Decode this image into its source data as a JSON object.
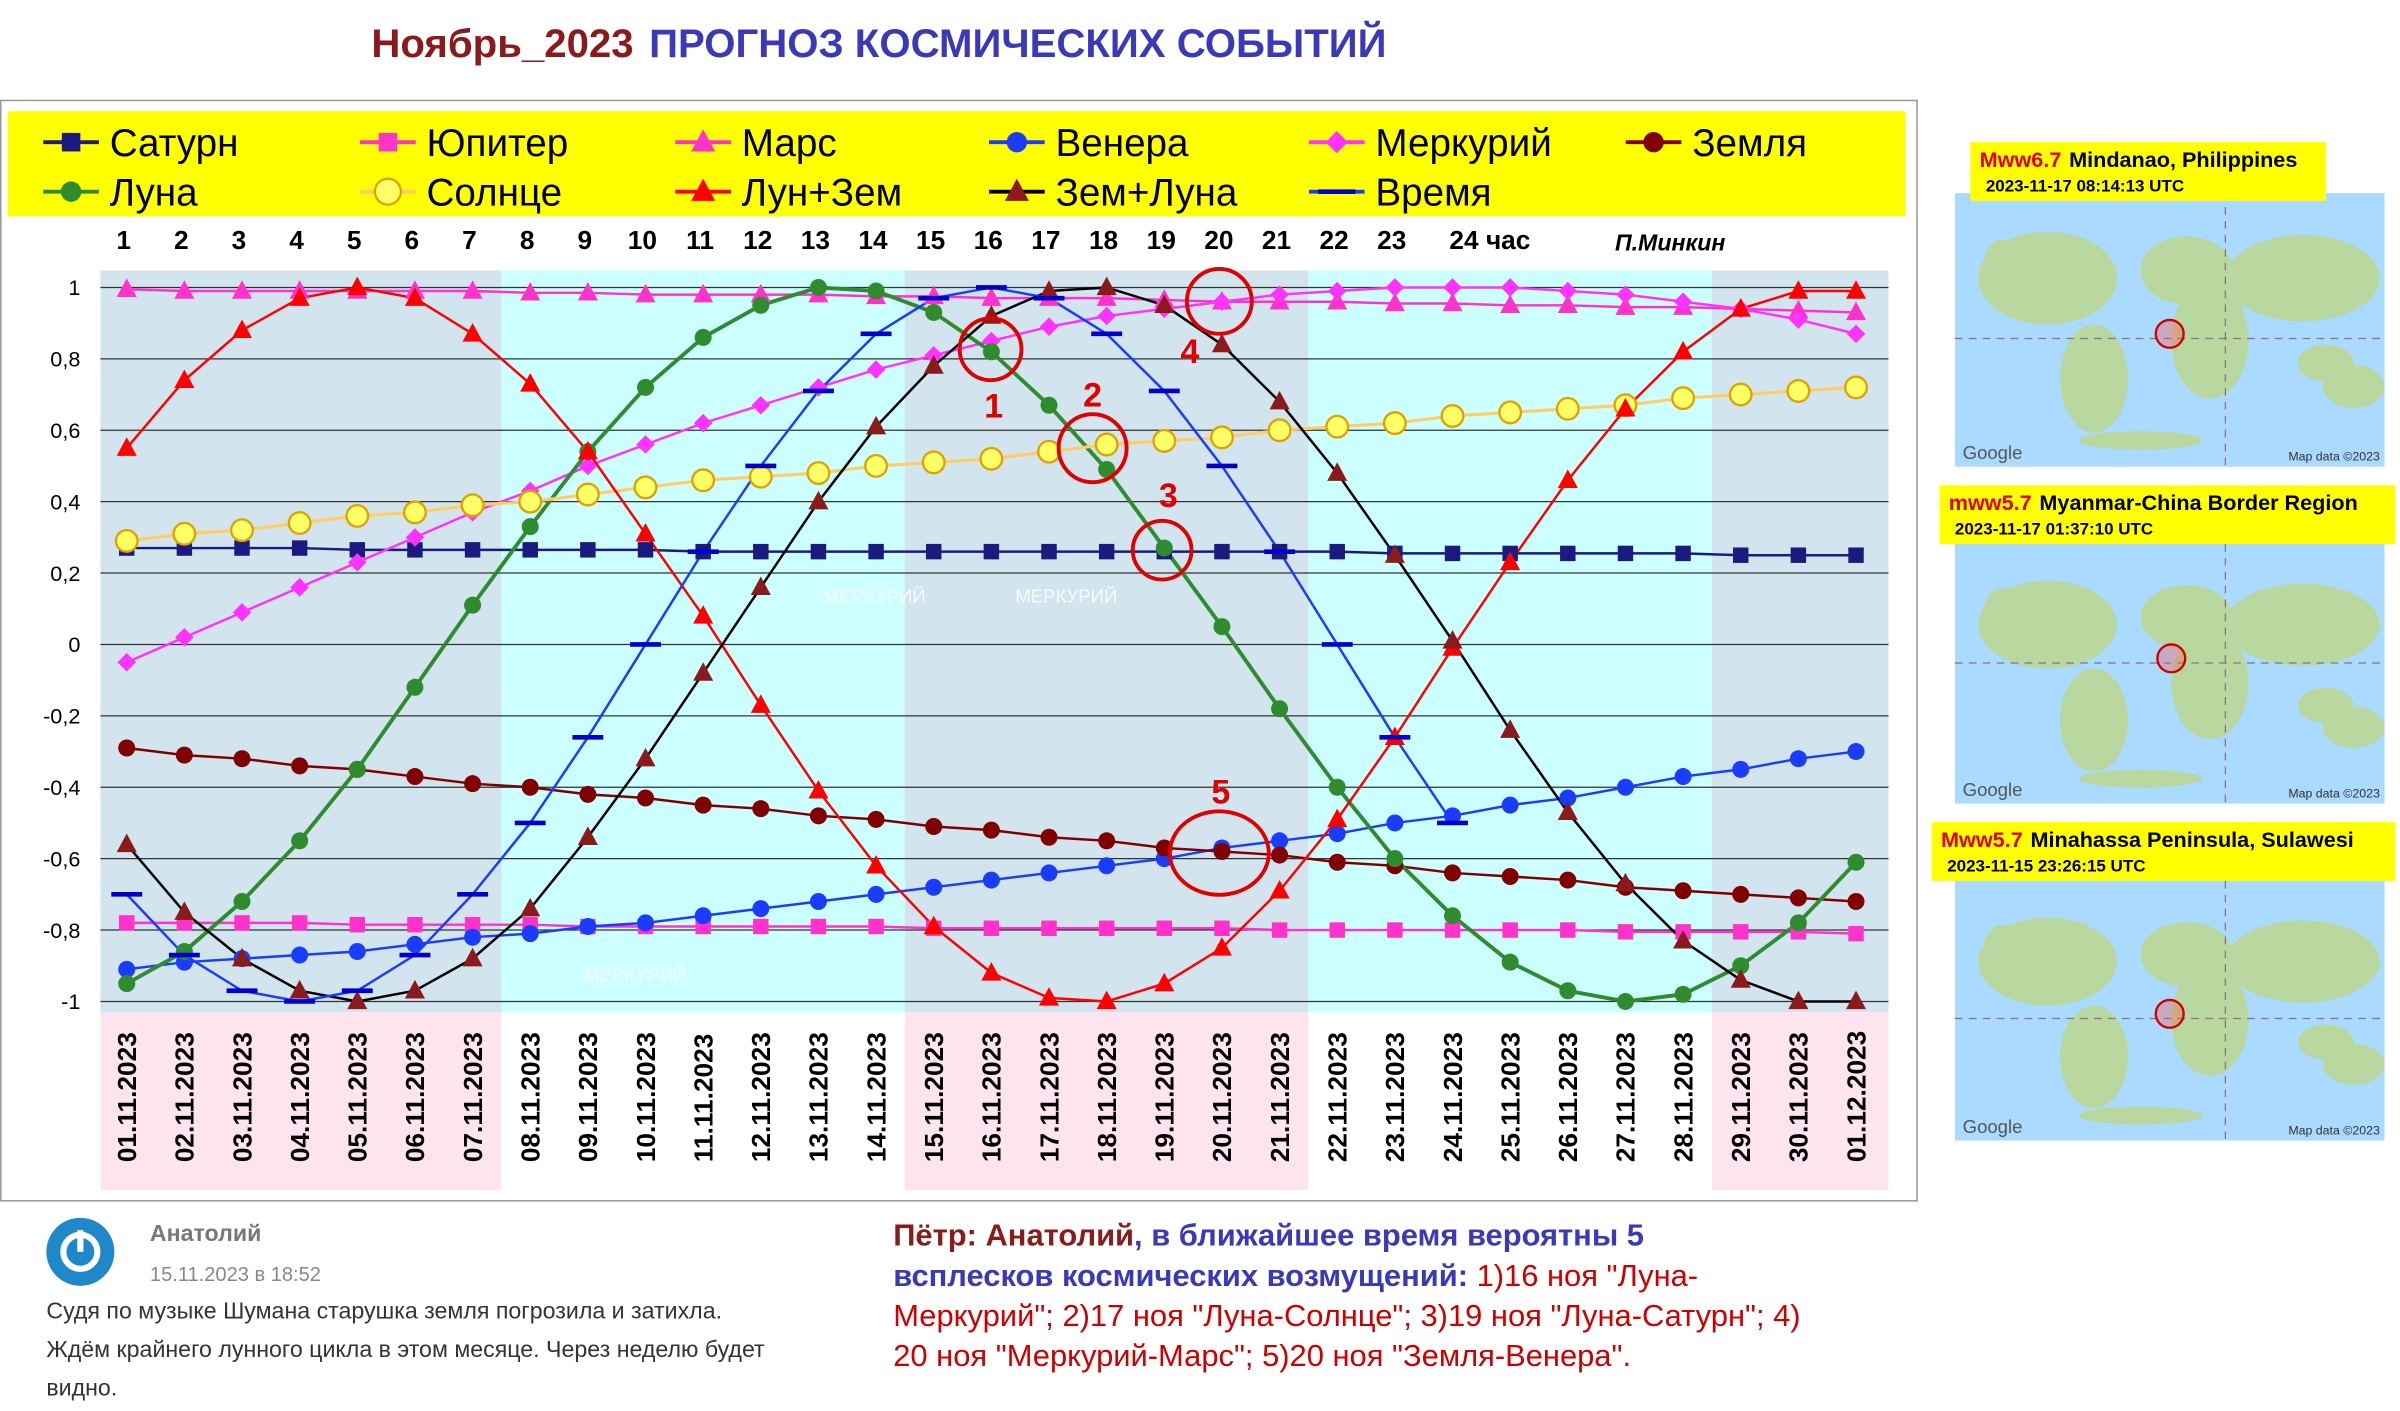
{
  "chart_data": {
    "type": "line",
    "title_part1": "Ноябрь_2023",
    "title_part2": "ПРОГНОЗ КОСМИЧЕСКИХ СОБЫТИЙ",
    "signature": "П.Минкин",
    "hour_labels": [
      "1",
      "2",
      "3",
      "4",
      "5",
      "6",
      "7",
      "8",
      "9",
      "10",
      "11",
      "12",
      "13",
      "14",
      "15",
      "16",
      "17",
      "18",
      "19",
      "20",
      "21",
      "22",
      "23",
      "24 час"
    ],
    "categories": [
      "01.11.2023",
      "02.11.2023",
      "03.11.2023",
      "04.11.2023",
      "05.11.2023",
      "06.11.2023",
      "07.11.2023",
      "08.11.2023",
      "09.11.2023",
      "10.11.2023",
      "11.11.2023",
      "12.11.2023",
      "13.11.2023",
      "14.11.2023",
      "15.11.2023",
      "16.11.2023",
      "17.11.2023",
      "18.11.2023",
      "19.11.2023",
      "20.11.2023",
      "21.11.2023",
      "22.11.2023",
      "23.11.2023",
      "24.11.2023",
      "25.11.2023",
      "26.11.2023",
      "27.11.2023",
      "28.11.2023",
      "29.11.2023",
      "30.11.2023",
      "01.12.2023"
    ],
    "ylim": [
      -1,
      1
    ],
    "yticks": [
      -1,
      {
        "value": -0.8,
        "label": "-0,8"
      },
      {
        "value": -0.6,
        "label": "-0,6"
      },
      {
        "value": -0.4,
        "label": "-0,4"
      },
      {
        "value": -0.2,
        "label": "-0,2"
      },
      0,
      {
        "value": 0.2,
        "label": "0,2"
      },
      {
        "value": 0.4,
        "label": "0,4"
      },
      {
        "value": 0.6,
        "label": "0,6"
      },
      {
        "value": 0.8,
        "label": "0,8"
      },
      1
    ],
    "grid": true,
    "series": [
      {
        "name": "Сатурн",
        "color": "#1a1a80",
        "line_color": "#1a1a80",
        "marker": "square",
        "values": [
          0.27,
          0.27,
          0.27,
          0.27,
          0.265,
          0.265,
          0.265,
          0.265,
          0.265,
          0.265,
          0.26,
          0.26,
          0.26,
          0.26,
          0.26,
          0.26,
          0.26,
          0.26,
          0.26,
          0.26,
          0.26,
          0.26,
          0.255,
          0.255,
          0.255,
          0.255,
          0.255,
          0.255,
          0.25,
          0.25,
          0.25
        ]
      },
      {
        "name": "Юпитер",
        "color": "#ff33cc",
        "line_color": "#ff33cc",
        "marker": "square",
        "values": [
          -0.78,
          -0.78,
          -0.78,
          -0.78,
          -0.785,
          -0.785,
          -0.785,
          -0.785,
          -0.79,
          -0.79,
          -0.79,
          -0.79,
          -0.79,
          -0.79,
          -0.795,
          -0.795,
          -0.795,
          -0.795,
          -0.795,
          -0.795,
          -0.8,
          -0.8,
          -0.8,
          -0.8,
          -0.8,
          -0.8,
          -0.805,
          -0.805,
          -0.805,
          -0.805,
          -0.81
        ]
      },
      {
        "name": "Марс",
        "color": "#ff33cc",
        "line_color": "#ff33cc",
        "marker": "triangle",
        "values": [
          0.995,
          0.99,
          0.99,
          0.99,
          0.99,
          0.99,
          0.99,
          0.985,
          0.985,
          0.98,
          0.98,
          0.98,
          0.98,
          0.975,
          0.975,
          0.97,
          0.97,
          0.97,
          0.965,
          0.96,
          0.96,
          0.96,
          0.955,
          0.955,
          0.95,
          0.95,
          0.945,
          0.945,
          0.94,
          0.935,
          0.93
        ]
      },
      {
        "name": "Венера",
        "color": "#1a3cff",
        "line_color": "#1a3cff",
        "marker": "circle",
        "values": [
          -0.91,
          -0.89,
          -0.88,
          -0.87,
          -0.86,
          -0.84,
          -0.82,
          -0.81,
          -0.79,
          -0.78,
          -0.76,
          -0.74,
          -0.72,
          -0.7,
          -0.68,
          -0.66,
          -0.64,
          -0.62,
          -0.6,
          -0.57,
          -0.55,
          -0.53,
          -0.5,
          -0.48,
          -0.45,
          -0.43,
          -0.4,
          -0.37,
          -0.35,
          -0.32,
          -0.3
        ]
      },
      {
        "name": "Меркурий",
        "color": "#ff33ff",
        "line_color": "#ff33ff",
        "marker": "diamond",
        "values": [
          -0.05,
          0.02,
          0.09,
          0.16,
          0.23,
          0.3,
          0.37,
          0.43,
          0.5,
          0.56,
          0.62,
          0.67,
          0.72,
          0.77,
          0.81,
          0.85,
          0.89,
          0.92,
          0.94,
          0.96,
          0.98,
          0.99,
          1.0,
          1.0,
          1.0,
          0.99,
          0.98,
          0.96,
          0.94,
          0.91,
          0.87
        ]
      },
      {
        "name": "Земля",
        "color": "#800000",
        "line_color": "#800000",
        "marker": "circle",
        "values": [
          -0.29,
          -0.31,
          -0.32,
          -0.34,
          -0.35,
          -0.37,
          -0.39,
          -0.4,
          -0.42,
          -0.43,
          -0.45,
          -0.46,
          -0.48,
          -0.49,
          -0.51,
          -0.52,
          -0.54,
          -0.55,
          -0.57,
          -0.58,
          -0.59,
          -0.61,
          -0.62,
          -0.64,
          -0.65,
          -0.66,
          -0.68,
          -0.69,
          -0.7,
          -0.71,
          -0.72
        ]
      },
      {
        "name": "Луна",
        "color": "#2e8b2e",
        "line_color": "#2e8b2e",
        "marker": "circle",
        "values": [
          -0.95,
          -0.86,
          -0.72,
          -0.55,
          -0.35,
          -0.12,
          0.11,
          0.33,
          0.54,
          0.72,
          0.86,
          0.95,
          1.0,
          0.99,
          0.93,
          0.82,
          0.67,
          0.49,
          0.27,
          0.05,
          -0.18,
          -0.4,
          -0.6,
          -0.76,
          -0.89,
          -0.97,
          -1.0,
          -0.98,
          -0.9,
          -0.78,
          -0.61
        ]
      },
      {
        "name": "Солнце",
        "color": "#ffff66",
        "line_color": "#ffcc66",
        "marker": "sun",
        "values": [
          0.29,
          0.31,
          0.32,
          0.34,
          0.36,
          0.37,
          0.39,
          0.4,
          0.42,
          0.44,
          0.46,
          0.47,
          0.48,
          0.5,
          0.51,
          0.52,
          0.54,
          0.56,
          0.57,
          0.58,
          0.6,
          0.61,
          0.62,
          0.64,
          0.65,
          0.66,
          0.67,
          0.69,
          0.7,
          0.71,
          0.72
        ]
      },
      {
        "name": "Лун+Зем",
        "color": "#ff0000",
        "line_color": "#ff0000",
        "marker": "triangle",
        "values": [
          0.55,
          0.74,
          0.88,
          0.97,
          1.0,
          0.97,
          0.87,
          0.73,
          0.54,
          0.31,
          0.08,
          -0.17,
          -0.41,
          -0.62,
          -0.79,
          -0.92,
          -0.99,
          -1.0,
          -0.95,
          -0.85,
          -0.69,
          -0.49,
          -0.26,
          -0.01,
          0.23,
          0.46,
          0.66,
          0.82,
          0.94,
          0.99,
          0.99
        ]
      },
      {
        "name": "Зем+Луна",
        "color": "#8b1a1a",
        "line_color": "#000000",
        "marker": "triangle",
        "values": [
          -0.56,
          -0.75,
          -0.88,
          -0.97,
          -1.0,
          -0.97,
          -0.88,
          -0.74,
          -0.54,
          -0.32,
          -0.08,
          0.16,
          0.4,
          0.61,
          0.78,
          0.92,
          0.99,
          1.0,
          0.95,
          0.84,
          0.68,
          0.48,
          0.25,
          0.01,
          -0.24,
          -0.47,
          -0.67,
          -0.83,
          -0.94,
          -1.0,
          -1.0
        ]
      },
      {
        "name": "Время",
        "color": "#0000cc",
        "line_color": "#1a3cff",
        "marker": "dash",
        "values": [
          -0.7,
          -0.87,
          -0.97,
          -1.0,
          -0.97,
          -0.87,
          -0.7,
          -0.5,
          -0.26,
          0.0,
          0.26,
          0.5,
          0.71,
          0.87,
          0.97,
          1.0,
          0.97,
          0.87,
          0.71,
          0.5,
          0.26,
          0.0,
          -0.26,
          -0.5,
          null,
          null,
          null,
          null,
          null,
          null,
          null
        ]
      }
    ],
    "annotations": [
      "1",
      "2",
      "3",
      "4",
      "5"
    ],
    "watermarks": [
      "МЕРКУРИЙ",
      "МЕРКУРИЙ",
      "МЕРКУРИЙ"
    ]
  },
  "earthquakes": [
    {
      "magnitude": "Mww6.7",
      "place": "Mindanao, Philippines",
      "time": "2023-11-17 08:14:13 UTC"
    },
    {
      "magnitude": "mww5.7",
      "place": "Myanmar-China Border Region",
      "time": "2023-11-17 01:37:10 UTC"
    },
    {
      "magnitude": "Mww5.7",
      "place": "Minahassa Peninsula, Sulawesi",
      "time": "2023-11-15 23:26:15 UTC"
    }
  ],
  "map_credits": {
    "brand": "Google",
    "data": "Map data ©2023"
  },
  "comment": {
    "author": "Анатолий",
    "date": "15.11.2023 в 18:52",
    "lines": [
      "Судя по музыке Шумана старушка земля погрозила и затихла.",
      "Ждём крайнего лунного цикла в этом месяце. Через неделю будет",
      "видно."
    ]
  },
  "reply": {
    "lines": [
      [
        "Пётр: Анатолий",
        ", в ближайшее время вероятны 5"
      ],
      [
        "всплесков космических возмущений:",
        " 1)16 ноя \"Луна-"
      ],
      [
        "Меркурий\"; 2)17 ноя \"Луна-Солнце\"; 3)19 ноя \"Луна-Сатурн\"; 4)"
      ],
      [
        "20 ноя \"Меркурий-Марс\"; 5)20 ноя \"Земля-Венера\"."
      ]
    ]
  }
}
